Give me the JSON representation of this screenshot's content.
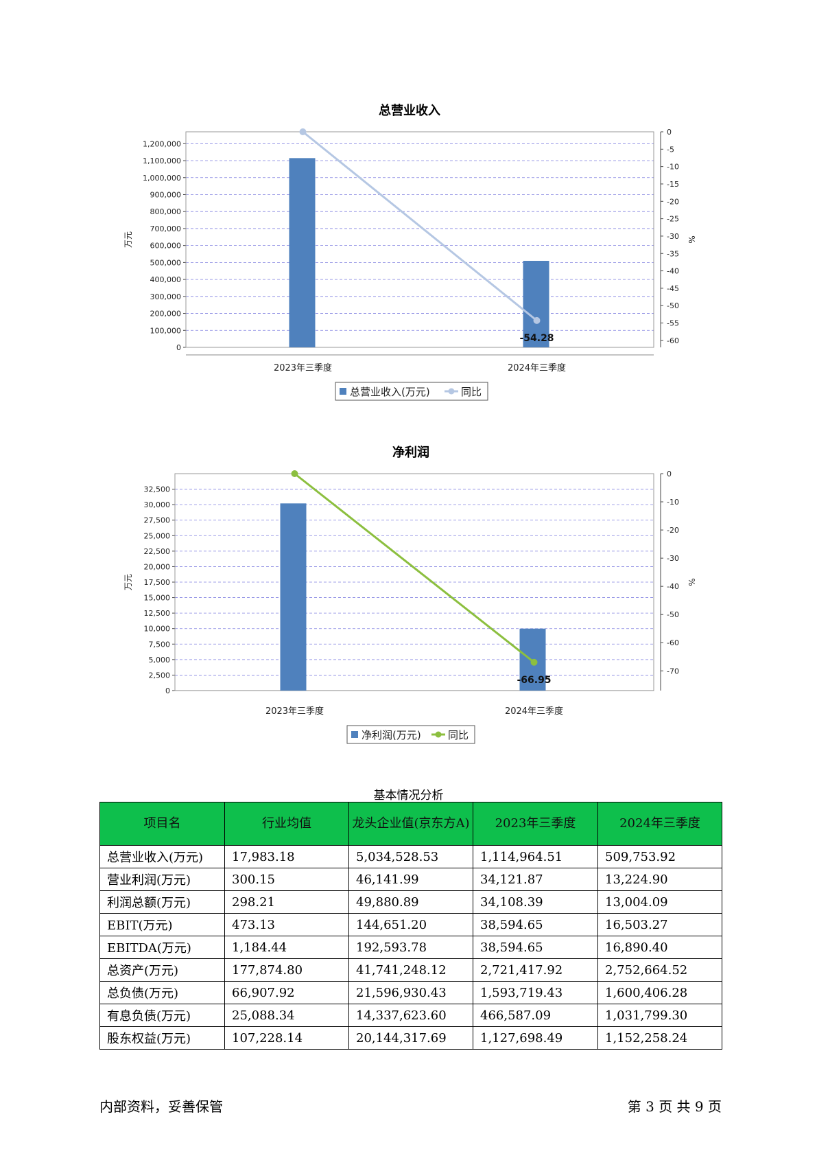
{
  "colors": {
    "bar": "#4f81bd",
    "revenue_line": "#b5c7e3",
    "profit_line": "#8cbf3f",
    "grid": "#8080e0",
    "header_bg": "#0ebf4c"
  },
  "chart_data": [
    {
      "type": "bar",
      "title": "总营业收入",
      "ylabel": "万元",
      "y2label": "%",
      "categories": [
        "2023年三季度",
        "2024年三季度"
      ],
      "ylim": [
        0,
        1270000
      ],
      "yticks": [
        0,
        100000,
        200000,
        300000,
        400000,
        500000,
        600000,
        700000,
        800000,
        900000,
        1000000,
        1100000,
        1200000
      ],
      "y2lim": [
        0,
        -62
      ],
      "y2ticks": [
        0,
        -5,
        -10,
        -15,
        -20,
        -25,
        -30,
        -35,
        -40,
        -45,
        -50,
        -55,
        -60
      ],
      "series": [
        {
          "name": "总营业收入(万元)",
          "type": "bar",
          "values": [
            1114964.51,
            509753.92
          ]
        },
        {
          "name": "同比",
          "type": "line",
          "axis": "right",
          "values": [
            0,
            -54.28
          ],
          "labels": [
            "",
            "-54.28"
          ]
        }
      ],
      "legend": "bottom",
      "grid": true
    },
    {
      "type": "bar",
      "title": "净利润",
      "ylabel": "万元",
      "y2label": "%",
      "categories": [
        "2023年三季度",
        "2024年三季度"
      ],
      "ylim": [
        0,
        35000
      ],
      "yticks": [
        0,
        2500,
        5000,
        7500,
        10000,
        12500,
        15000,
        17500,
        20000,
        22500,
        25000,
        27500,
        30000,
        32500
      ],
      "y2lim": [
        0,
        -77
      ],
      "y2ticks": [
        0,
        -10,
        -20,
        -30,
        -40,
        -50,
        -60,
        -70
      ],
      "series": [
        {
          "name": "净利润(万元)",
          "type": "bar",
          "values": [
            30200,
            10000
          ]
        },
        {
          "name": "同比",
          "type": "line",
          "axis": "right",
          "values": [
            0,
            -66.95
          ],
          "labels": [
            "",
            "-66.95"
          ]
        }
      ],
      "legend": "bottom",
      "grid": true
    }
  ],
  "table": {
    "caption": "基本情况分析",
    "headers": [
      "项目名",
      "行业均值",
      "龙头企业值(京东方A)",
      "2023年三季度",
      "2024年三季度"
    ],
    "rows": [
      [
        "总营业收入(万元)",
        "17,983.18",
        "5,034,528.53",
        "1,114,964.51",
        "509,753.92"
      ],
      [
        "营业利润(万元)",
        "300.15",
        "46,141.99",
        "34,121.87",
        "13,224.90"
      ],
      [
        "利润总额(万元)",
        "298.21",
        "49,880.89",
        "34,108.39",
        "13,004.09"
      ],
      [
        "EBIT(万元)",
        "473.13",
        "144,651.20",
        "38,594.65",
        "16,503.27"
      ],
      [
        "EBITDA(万元)",
        "1,184.44",
        "192,593.78",
        "38,594.65",
        "16,890.40"
      ],
      [
        "总资产(万元)",
        "177,874.80",
        "41,741,248.12",
        "2,721,417.92",
        "2,752,664.52"
      ],
      [
        "总负债(万元)",
        "66,907.92",
        "21,596,930.43",
        "1,593,719.43",
        "1,600,406.28"
      ],
      [
        "有息负债(万元)",
        "25,088.34",
        "14,337,623.60",
        "466,587.09",
        "1,031,799.30"
      ],
      [
        "股东权益(万元)",
        "107,228.14",
        "20,144,317.69",
        "1,127,698.49",
        "1,152,258.24"
      ]
    ]
  },
  "footer": {
    "left": "内部资料，妥善保管",
    "right": "第 3 页   共 9 页"
  }
}
